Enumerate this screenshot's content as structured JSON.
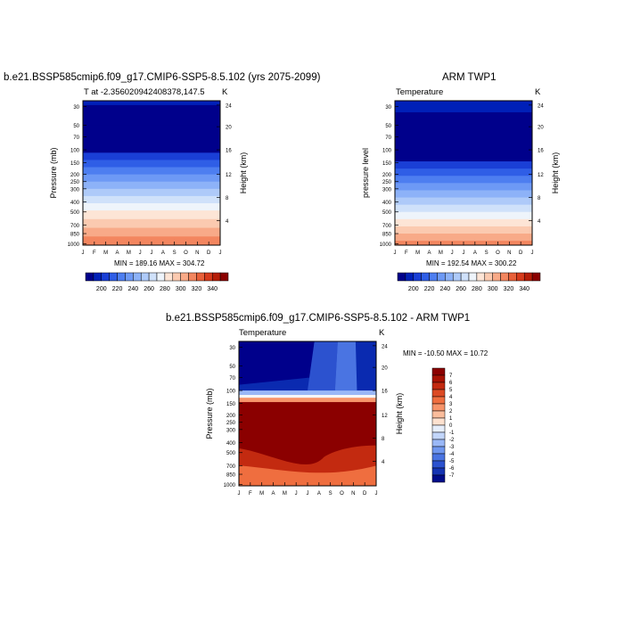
{
  "chart_data": [
    {
      "type": "heatmap",
      "title": "b.e21.BSSP585cmip6.f09_g17.CMIP6-SSP5-8.5.102 (yrs 2075-2099)",
      "left_label": "T at -2.356020942408378,147.5",
      "right_label": "K",
      "ylabel": "Pressure (mb)",
      "ylabel_right": "Height (km)",
      "x_ticks": [
        "J",
        "F",
        "M",
        "A",
        "M",
        "J",
        "J",
        "A",
        "S",
        "O",
        "N",
        "D",
        "J"
      ],
      "pressure_ticks": [
        "30",
        "50",
        "70",
        "100",
        "150",
        "200",
        "250",
        "300",
        "400",
        "500",
        "700",
        "850",
        "1000"
      ],
      "height_ticks": [
        "4",
        "8",
        "12",
        "16",
        "20",
        "24"
      ],
      "stats": "MIN = 189.16 MAX = 304.72",
      "colorbar_labels": [
        "200",
        "220",
        "240",
        "260",
        "280",
        "300",
        "320",
        "340"
      ],
      "min": 189.16,
      "max": 304.72
    },
    {
      "type": "heatmap",
      "title": "ARM TWP1",
      "left_label": "Temperature",
      "right_label": "K",
      "ylabel": "pressure level",
      "ylabel_right": "Height (km)",
      "x_ticks": [
        "J",
        "F",
        "M",
        "A",
        "M",
        "J",
        "J",
        "A",
        "S",
        "O",
        "N",
        "D",
        "J"
      ],
      "pressure_ticks": [
        "30",
        "50",
        "70",
        "100",
        "150",
        "200",
        "250",
        "300",
        "400",
        "500",
        "700",
        "850",
        "1000"
      ],
      "height_ticks": [
        "4",
        "8",
        "12",
        "16",
        "20",
        "24"
      ],
      "stats": "MIN = 192.54 MAX = 300.22",
      "colorbar_labels": [
        "200",
        "220",
        "240",
        "260",
        "280",
        "300",
        "320",
        "340"
      ],
      "min": 192.54,
      "max": 300.22
    },
    {
      "type": "heatmap",
      "title": "b.e21.BSSP585cmip6.f09_g17.CMIP6-SSP5-8.5.102 - ARM TWP1",
      "left_label": "Temperature",
      "right_label": "K",
      "ylabel": "Pressure (mb)",
      "ylabel_right": "Height (km)",
      "x_ticks": [
        "J",
        "F",
        "M",
        "A",
        "M",
        "J",
        "J",
        "A",
        "S",
        "O",
        "N",
        "D",
        "J"
      ],
      "pressure_ticks": [
        "30",
        "50",
        "70",
        "100",
        "150",
        "200",
        "250",
        "300",
        "400",
        "500",
        "700",
        "850",
        "1000"
      ],
      "height_ticks": [
        "4",
        "8",
        "12",
        "16",
        "20",
        "24"
      ],
      "stats": "MIN = -10.50 MAX =  10.72",
      "colorbar_labels": [
        "7",
        "6",
        "5",
        "4",
        "3",
        "2",
        "1",
        "0",
        "-1",
        "-2",
        "-3",
        "-4",
        "-5",
        "-6",
        "-7"
      ],
      "min": -10.5,
      "max": 10.72
    }
  ]
}
